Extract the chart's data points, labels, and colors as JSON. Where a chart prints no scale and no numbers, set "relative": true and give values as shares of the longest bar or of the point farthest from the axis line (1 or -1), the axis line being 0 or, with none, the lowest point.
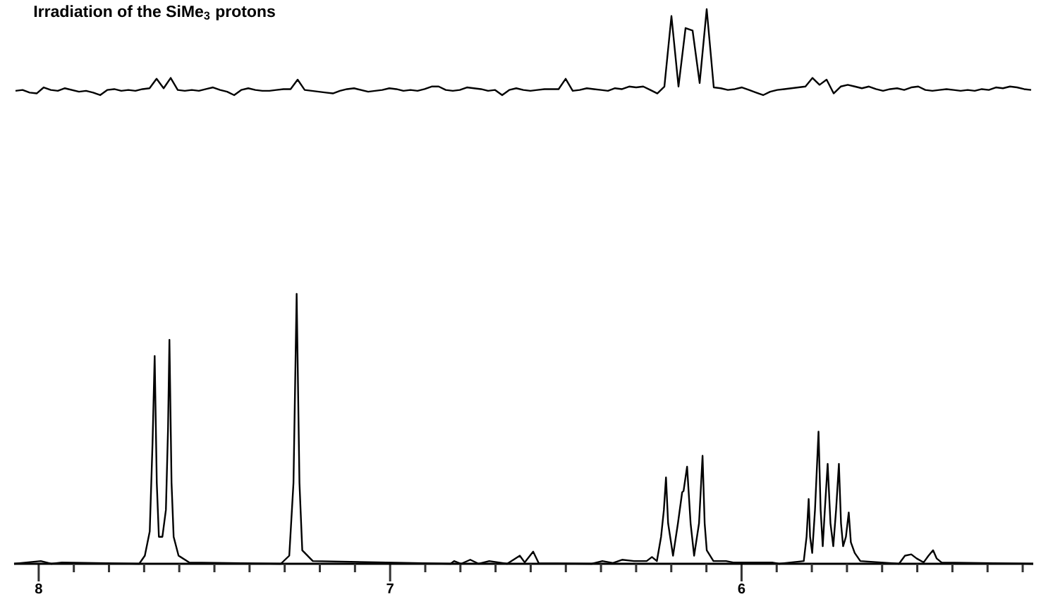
{
  "chart_data": [
    {
      "type": "line",
      "title": "Irradiation of the SiMe$_{3}$ protons",
      "relative": true,
      "categories": [
        null,
        null,
        null,
        null,
        null,
        null,
        null,
        null,
        null,
        null,
        null,
        null,
        null,
        null,
        null,
        null,
        null,
        null,
        null,
        null,
        null,
        null,
        null,
        null,
        null,
        null,
        null,
        null,
        null,
        null,
        null,
        null,
        null,
        null,
        null,
        null,
        null,
        null,
        null,
        null,
        null,
        null,
        null,
        null,
        null,
        null,
        null,
        null,
        null,
        null,
        null,
        null,
        null,
        null,
        null,
        null,
        null,
        null,
        null,
        null,
        null,
        null,
        null,
        null,
        null,
        null,
        null,
        null,
        null,
        null,
        null,
        null,
        null,
        null,
        null,
        null,
        null,
        null,
        null,
        null,
        null,
        null,
        null,
        null,
        null,
        null,
        null,
        null,
        null,
        null,
        null,
        null,
        null,
        null,
        null,
        null,
        null,
        null,
        null,
        null,
        null,
        null,
        null,
        null,
        null,
        null,
        null,
        null,
        null,
        null,
        null,
        null,
        null,
        null,
        null,
        null,
        null,
        null,
        null,
        null,
        null,
        null,
        null,
        null,
        null,
        null,
        null,
        null,
        null,
        null,
        null,
        null,
        null,
        null,
        null,
        null,
        null,
        null,
        null,
        null,
        null,
        null,
        null,
        null,
        null
      ],
      "series": [
        {
          "color": "#000000",
          "values": [
            0.05,
            0.06,
            0.03,
            0.02,
            0.09,
            0.06,
            0.05,
            0.08,
            0.06,
            0.04,
            0.05,
            0.03,
            0,
            0.06,
            0.07,
            0.05,
            0.06,
            0.05,
            0.07,
            0.08,
            0.19,
            0.08,
            0.2,
            0.06,
            0.05,
            0.06,
            0.05,
            0.07,
            0.09,
            0.06,
            0.04,
            0,
            0.06,
            0.08,
            0.06,
            0.05,
            0.05,
            0.06,
            0.07,
            0.07,
            0.18,
            0.06,
            0.05,
            0.04,
            0.03,
            0.02,
            0.05,
            0.07,
            0.08,
            0.06,
            0.04,
            0.05,
            0.06,
            0.08,
            0.07,
            0.05,
            0.06,
            0.05,
            0.07,
            0.1,
            0.1,
            0.06,
            0.05,
            0.06,
            0.09,
            0.08,
            0.07,
            0.05,
            0.06,
            0,
            0.06,
            0.08,
            0.06,
            0.05,
            0.06,
            0.07,
            0.07,
            0.07,
            0.19,
            0.05,
            0.06,
            0.08,
            0.07,
            0.06,
            0.05,
            0.08,
            0.07,
            0.1,
            0.09,
            0.1,
            0.06,
            0.02,
            0.1,
            0.92,
            0.1,
            0.78,
            0.75,
            0.14,
            1.0,
            0.09,
            0.08,
            0.06,
            0.07,
            0.09,
            0.06,
            0.03,
            0,
            0.04,
            0.06,
            0.07,
            0.08,
            0.09,
            0.1,
            0.2,
            0.12,
            0.18,
            0.02,
            0.1,
            0.12,
            0.1,
            0.08,
            0.1,
            0.07,
            0.05,
            0.07,
            0.08,
            0.06,
            0.09,
            0.1,
            0.06,
            0.05,
            0.06,
            0.07,
            0.06,
            0.05,
            0.06,
            0.05,
            0.07,
            0.06,
            0.09,
            0.08,
            0.1,
            0.09,
            0.07,
            0.06
          ]
        }
      ]
    },
    {
      "type": "line",
      "relative": true,
      "xlim": [
        8.07,
        5.17
      ],
      "xticks": [
        8,
        {
          "value": 7.9,
          "label": null
        },
        {
          "value": 7.8,
          "label": null
        },
        {
          "value": 7.7,
          "label": null
        },
        {
          "value": 7.6,
          "label": null
        },
        {
          "value": 7.5,
          "label": null
        },
        {
          "value": 7.4,
          "label": null
        },
        {
          "value": 7.3,
          "label": null
        },
        {
          "value": 7.2,
          "label": null
        },
        {
          "value": 7.1,
          "label": null
        },
        7,
        {
          "value": 6.9,
          "label": null
        },
        {
          "value": 6.8,
          "label": null
        },
        {
          "value": 6.7,
          "label": null
        },
        {
          "value": 6.6,
          "label": null
        },
        {
          "value": 6.5,
          "label": null
        },
        {
          "value": 6.4,
          "label": null
        },
        {
          "value": 6.3,
          "label": null
        },
        {
          "value": 6.2,
          "label": null
        },
        {
          "value": 6.1,
          "label": null
        },
        6,
        {
          "value": 5.9,
          "label": null
        },
        {
          "value": 5.8,
          "label": null
        },
        {
          "value": 5.7,
          "label": null
        },
        {
          "value": 5.6,
          "label": null
        },
        {
          "value": 5.5,
          "label": null
        },
        {
          "value": 5.4,
          "label": null
        },
        {
          "value": 5.3,
          "label": null
        },
        {
          "value": 5.2,
          "label": null
        }
      ],
      "x": [
        8.07,
        7.994,
        7.964,
        7.934,
        7.714,
        7.698,
        7.684,
        7.676,
        7.67,
        7.664,
        7.658,
        7.648,
        7.638,
        7.632,
        7.628,
        7.622,
        7.616,
        7.602,
        7.572,
        7.311,
        7.287,
        7.275,
        7.266,
        7.258,
        7.25,
        7.22,
        6.828,
        6.818,
        6.798,
        6.772,
        6.748,
        6.718,
        6.667,
        6.631,
        6.617,
        6.593,
        6.577,
        6.426,
        6.396,
        6.366,
        6.34,
        6.306,
        6.27,
        6.255,
        6.241,
        6.229,
        6.221,
        6.215,
        6.209,
        6.195,
        6.181,
        6.169,
        6.165,
        6.155,
        6.145,
        6.135,
        6.121,
        6.111,
        6.105,
        6.099,
        6.08,
        6.044,
        6.024,
        5.913,
        5.893,
        5.823,
        5.815,
        5.809,
        5.805,
        5.799,
        5.791,
        5.781,
        5.775,
        5.769,
        5.763,
        5.755,
        5.747,
        5.739,
        5.731,
        5.723,
        5.717,
        5.711,
        5.703,
        5.695,
        5.689,
        5.678,
        5.662,
        5.552,
        5.535,
        5.517,
        5.502,
        5.482,
        5.468,
        5.455,
        5.445,
        5.431,
        5.17
      ],
      "series": [
        {
          "color": "#000000",
          "values": [
            0,
            0.01,
            0,
            0.005,
            0,
            0.03,
            0.12,
            0.45,
            0.77,
            0.3,
            0.1,
            0.1,
            0.2,
            0.5,
            0.83,
            0.3,
            0.1,
            0.03,
            0.005,
            0,
            0.03,
            0.3,
            1.0,
            0.3,
            0.05,
            0.01,
            0,
            0.01,
            0,
            0.015,
            0,
            0.01,
            0,
            0.03,
            0.005,
            0.045,
            0.002,
            0,
            0.01,
            0.003,
            0.015,
            0.01,
            0.01,
            0.025,
            0.01,
            0.1,
            0.2,
            0.32,
            0.15,
            0.03,
            0.15,
            0.265,
            0.27,
            0.36,
            0.15,
            0.03,
            0.15,
            0.4,
            0.15,
            0.05,
            0.01,
            0.01,
            0.005,
            0.005,
            0,
            0.01,
            0.1,
            0.24,
            0.1,
            0.04,
            0.2,
            0.49,
            0.2,
            0.065,
            0.2,
            0.37,
            0.15,
            0.065,
            0.2,
            0.37,
            0.15,
            0.065,
            0.1,
            0.19,
            0.08,
            0.04,
            0.01,
            0,
            0.03,
            0.035,
            0.02,
            0.005,
            0.03,
            0.05,
            0.02,
            0.005,
            0
          ]
        }
      ]
    }
  ]
}
